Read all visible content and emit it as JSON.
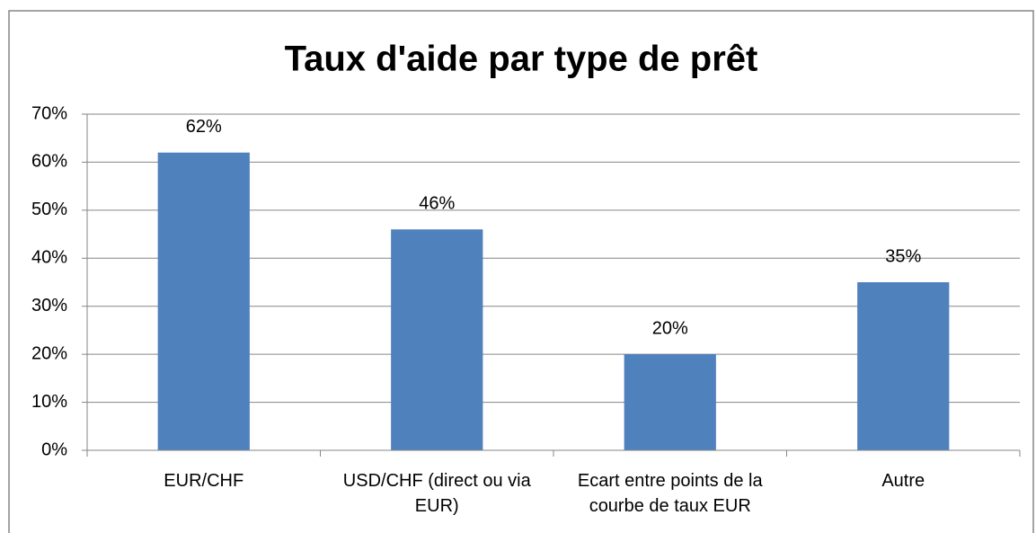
{
  "chart_data": {
    "type": "bar",
    "title": "Taux d'aide par type de prêt",
    "categories": [
      "EUR/CHF",
      "USD/CHF (direct ou via EUR)",
      "Ecart entre points de la courbe de taux EUR",
      "Autre"
    ],
    "values": [
      62,
      46,
      20,
      35
    ],
    "value_labels": [
      "62%",
      "46%",
      "20%",
      "35%"
    ],
    "color": "#4f81bd",
    "ylim": [
      0,
      70
    ],
    "yticks": [
      {
        "value": 0,
        "label": "0%"
      },
      {
        "value": 10,
        "label": "10%"
      },
      {
        "value": 20,
        "label": "20%"
      },
      {
        "value": 30,
        "label": "30%"
      },
      {
        "value": 40,
        "label": "40%"
      },
      {
        "value": 50,
        "label": "50%"
      },
      {
        "value": 60,
        "label": "60%"
      },
      {
        "value": 70,
        "label": "70%"
      }
    ],
    "grid": true
  }
}
